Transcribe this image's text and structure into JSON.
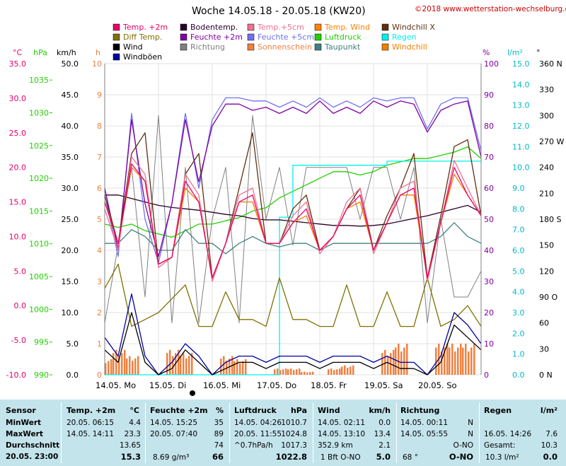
{
  "header": {
    "title": "Woche 14.05.18 - 20.05.18 (KW20)",
    "copyright": "©2018 www.wetterstation-wechselburg.de"
  },
  "legend": [
    {
      "label": "Temp. +2m",
      "color": "#e8006a"
    },
    {
      "label": "Bodentemp.",
      "color": "#280028"
    },
    {
      "label": "Temp.+5cm",
      "color": "#f07090"
    },
    {
      "label": "Temp. Wind",
      "color": "#ff8000"
    },
    {
      "label": "Windchill X",
      "color": "#603010"
    },
    {
      "label": "Diff Temp.",
      "color": "#807000"
    },
    {
      "label": "Feuchte +2m",
      "color": "#8000a0"
    },
    {
      "label": "Feuchte +5cm",
      "color": "#7070f0"
    },
    {
      "label": "Luftdruck",
      "color": "#20d000"
    },
    {
      "label": "Regen",
      "color": "#00f0f0"
    },
    {
      "label": "Wind",
      "color": "#000000"
    },
    {
      "label": "Richtung",
      "color": "#808080"
    },
    {
      "label": "Sonnenschein",
      "color": "#f08040"
    },
    {
      "label": "Taupunkt",
      "color": "#408080"
    },
    {
      "label": "Windchill",
      "color": "#f08000"
    },
    {
      "label": "Windböen",
      "color": "#0000a0"
    }
  ],
  "chart_data": {
    "type": "line",
    "title": "Woche 14.05.18 - 20.05.18 (KW20)",
    "x_days": [
      "14.05.  Mo",
      "15.05.  Di",
      "16.05.  Mi",
      "17.05.  Do",
      "18.05.  Fr",
      "19.05.  Sa",
      "20.05.  So"
    ],
    "hours": [
      0,
      6,
      12,
      18,
      24,
      30,
      36,
      42,
      48,
      54,
      60,
      66,
      72,
      78,
      84,
      90,
      96,
      102,
      108,
      114,
      120,
      126,
      132,
      138,
      144,
      150,
      156,
      162,
      168
    ],
    "axes": {
      "temp_c": {
        "unit": "°C",
        "range": [
          -10,
          35
        ],
        "ticks": [
          "35.0",
          "30.0",
          "25.0",
          "20.0",
          "15.0",
          "10.0",
          "5.0",
          "0.0",
          "-5.0",
          "-10.0"
        ],
        "color": "#e8006a"
      },
      "pressure_hpa": {
        "unit": "hPa",
        "range": [
          990,
          1037.5
        ],
        "ticks": [
          "1035",
          "1030",
          "1025",
          "1020",
          "1015",
          "1010",
          "1005",
          "1000",
          "995",
          "990"
        ],
        "color": "#20d000"
      },
      "wind_kmh": {
        "unit": "km/h",
        "range": [
          0,
          50
        ],
        "ticks": [
          "50.0",
          "45.0",
          "40.0",
          "35.0",
          "30.0",
          "25.0",
          "20.0",
          "15.0",
          "10.0",
          "5.0",
          "0.0"
        ],
        "color": "#000000"
      },
      "sunshine_h": {
        "unit": "h",
        "range": [
          0,
          10
        ],
        "ticks": [
          "10",
          "9",
          "8",
          "7",
          "6",
          "5",
          "4",
          "3",
          "2",
          "1",
          "0"
        ],
        "color": "#f08040"
      },
      "humidity_pct": {
        "unit": "%",
        "range": [
          0,
          100
        ],
        "ticks": [
          "100",
          "90",
          "80",
          "70",
          "60",
          "50",
          "40",
          "30",
          "20",
          "10",
          "0"
        ],
        "color": "#8000a0"
      },
      "rain_lm2": {
        "unit": "l/m²",
        "range": [
          0,
          15
        ],
        "ticks": [
          "15.0",
          "14.0",
          "13.0",
          "12.0",
          "11.0",
          "10.0",
          "9.0",
          "8.0",
          "7.0",
          "6.0",
          "5.0",
          "4.0",
          "3.0",
          "2.0",
          "1.0",
          "0.0"
        ],
        "color": "#00c8c8"
      },
      "direction": {
        "unit": "°",
        "ticks": [
          "360 N",
          "330",
          "300",
          "270 W",
          "240",
          "210",
          "180 S",
          "150",
          "120",
          "90 O",
          "60",
          "30",
          "0 N"
        ],
        "color": "#000000"
      }
    },
    "series": [
      {
        "name": "Temp. +2m",
        "axis": "temp_c",
        "values": [
          15,
          9,
          20.5,
          18,
          6,
          7,
          18,
          15,
          4,
          9,
          15,
          16,
          9,
          9,
          12,
          14,
          8,
          10,
          14,
          16,
          8,
          12,
          16,
          17,
          4,
          12,
          20,
          16,
          13
        ]
      },
      {
        "name": "Bodentemp.",
        "axis": "temp_c",
        "values": [
          16,
          16,
          15.5,
          15,
          14.5,
          14.2,
          14,
          13.8,
          13.5,
          13.2,
          13,
          12.6,
          12.4,
          12.4,
          12.2,
          12,
          11.8,
          11.6,
          11.6,
          11.5,
          11.6,
          11.8,
          12.2,
          12.6,
          13,
          13.5,
          14,
          14.5,
          13.5
        ]
      },
      {
        "name": "Temp.+5cm",
        "axis": "temp_c",
        "values": [
          14,
          8,
          21.5,
          19,
          5.5,
          7,
          19,
          16,
          3.5,
          9,
          16,
          17,
          9,
          9,
          13,
          15,
          7.5,
          10,
          15,
          17,
          7.5,
          12,
          17,
          18,
          3.5,
          12,
          21,
          17,
          13
        ]
      },
      {
        "name": "Windchill X",
        "axis": "temp_c",
        "values": [
          16,
          9,
          22,
          25,
          6,
          7,
          19,
          22,
          4,
          9,
          17,
          25,
          9,
          9,
          14,
          16,
          8,
          10,
          14,
          17,
          8,
          13,
          17,
          22,
          4,
          13,
          23,
          24,
          13
        ]
      },
      {
        "name": "Diff Temp.",
        "axis": "temp_c",
        "values": [
          2.5,
          6,
          -3,
          -2,
          -1,
          1,
          3,
          -3,
          -3,
          2,
          -2,
          -2,
          -3,
          4,
          -2,
          -2,
          -3,
          -3,
          3,
          -3,
          -3,
          2,
          -3,
          -3,
          4,
          -3,
          -2,
          0,
          -3
        ]
      },
      {
        "name": "Feuchte +2m",
        "axis": "humidity_pct",
        "values": [
          60,
          40,
          82,
          55,
          38,
          55,
          82,
          62,
          80,
          87,
          87,
          85,
          86,
          84,
          86,
          84,
          88,
          84,
          86,
          84,
          88,
          86,
          88,
          87,
          78,
          85,
          87,
          88,
          70
        ]
      },
      {
        "name": "Feuchte +5cm",
        "axis": "humidity_pct",
        "values": [
          58,
          38,
          84,
          50,
          36,
          55,
          84,
          60,
          82,
          89,
          89,
          88,
          88,
          86,
          88,
          86,
          89,
          86,
          88,
          86,
          89,
          88,
          89,
          89,
          79,
          87,
          89,
          89,
          72
        ]
      },
      {
        "name": "Luftdruck",
        "axis": "pressure_hpa",
        "values": [
          1013,
          1012.5,
          1013,
          1012,
          1011.5,
          1011,
          1012,
          1013,
          1013,
          1013.5,
          1014,
          1015,
          1015.5,
          1017,
          1018,
          1019,
          1020,
          1021,
          1021,
          1020.5,
          1021,
          1022,
          1022.5,
          1023,
          1023,
          1023.5,
          1024,
          1024.8,
          1023
        ]
      },
      {
        "name": "Regen",
        "axis": "rain_lm2",
        "values": [
          0,
          0,
          0,
          0,
          0,
          0,
          0,
          0,
          0,
          0,
          0,
          0,
          0,
          7.6,
          10.1,
          10.1,
          10.1,
          10.1,
          10.1,
          10.1,
          10.1,
          10.3,
          10.3,
          10.3,
          10.3,
          10.3,
          10.3,
          10.3,
          10.3
        ]
      },
      {
        "name": "Taupunkt",
        "axis": "temp_c",
        "values": [
          9,
          9,
          11,
          10,
          8,
          8,
          11,
          9,
          9,
          7.5,
          9,
          10,
          9,
          8.5,
          9,
          9,
          8,
          9,
          9,
          9,
          9,
          9,
          9,
          9,
          9,
          10,
          12,
          10,
          9
        ]
      },
      {
        "name": "Windchill",
        "axis": "temp_c",
        "values": [
          15,
          9,
          20,
          18,
          6,
          7,
          17,
          15,
          4,
          9,
          15,
          15,
          9,
          9,
          12,
          13,
          8,
          10,
          14,
          15,
          8,
          12,
          16,
          16,
          4,
          12,
          19,
          16,
          13
        ]
      },
      {
        "name": "Wind",
        "axis": "wind_kmh",
        "values": [
          4,
          2,
          10,
          2,
          0,
          1,
          4,
          2,
          0,
          1,
          2,
          2,
          1,
          2,
          2,
          2,
          1,
          2,
          2,
          2,
          1,
          2,
          1,
          1,
          0,
          2,
          8,
          6,
          4
        ]
      },
      {
        "name": "Windböen",
        "axis": "wind_kmh",
        "values": [
          6,
          3,
          13,
          3,
          0,
          2,
          5,
          3,
          0,
          2,
          3,
          3,
          2,
          3,
          3,
          3,
          2,
          3,
          3,
          3,
          2,
          3,
          2,
          2,
          0,
          3,
          10,
          8,
          5
        ]
      },
      {
        "name": "Richtung",
        "axis": "direction",
        "values": [
          60,
          150,
          240,
          90,
          300,
          60,
          240,
          60,
          180,
          240,
          60,
          300,
          180,
          240,
          150,
          240,
          240,
          240,
          240,
          180,
          240,
          240,
          180,
          240,
          60,
          180,
          90,
          90,
          120
        ]
      },
      {
        "name": "Sonnenschein",
        "axis": "sunshine_h",
        "values": [
          0.5,
          0.8,
          0.6,
          0,
          0,
          0.8,
          0.7,
          0,
          0,
          0.6,
          0.5,
          0,
          0,
          0.2,
          0.2,
          0.1,
          0,
          0.2,
          0.3,
          0,
          0,
          0.8,
          1,
          0,
          0,
          1,
          1,
          1,
          0
        ]
      }
    ]
  },
  "summary": {
    "sensor": {
      "header": "Sensor",
      "rows": [
        "MinWert",
        "MaxWert",
        "Durchschnitt",
        "20.05. 23:00"
      ]
    },
    "temp": {
      "header": "Temp. +2m",
      "unit": "°C",
      "rows": [
        [
          "20.05.  06:15",
          "4.4"
        ],
        [
          "14.05.  14:11",
          "23.3"
        ],
        [
          "",
          "13.65"
        ],
        [
          "",
          "15.3"
        ]
      ]
    },
    "feuchte": {
      "header": "Feuchte +2m",
      "unit": "%",
      "rows": [
        [
          "14.05.  15:25",
          "35"
        ],
        [
          "20.05.  07:40",
          "89"
        ],
        [
          "",
          "74"
        ],
        [
          "8.69 g/m³",
          "66"
        ]
      ]
    },
    "luftdruck": {
      "header": "Luftdruck",
      "unit": "hPa",
      "rows": [
        [
          "14.05.  04:26",
          "1010.7"
        ],
        [
          "20.05.  11:55",
          "1024.8"
        ],
        [
          "^0.7hPa/h",
          "1017.3"
        ],
        [
          "",
          "1022.8"
        ]
      ]
    },
    "wind": {
      "header": "Wind",
      "unit": "km/h",
      "rows": [
        [
          "14.05.  02:11",
          "0.0"
        ],
        [
          "14.05.  13:10",
          "13.4"
        ],
        [
          "352.9 km",
          "2.1"
        ],
        [
          "1 Bft O-NO",
          "5.0"
        ]
      ]
    },
    "richtung": {
      "header": "Richtung",
      "rows": [
        [
          "14.05.  00:11",
          "N"
        ],
        [
          "14.05.  05:55",
          "N"
        ],
        [
          "",
          "O-NO"
        ],
        [
          "68 °",
          "O-NO"
        ]
      ]
    },
    "regen": {
      "header": "Regen",
      "unit": "l/m²",
      "rows": [
        [
          "",
          ""
        ],
        [
          "16.05.  14:26",
          "7.6"
        ],
        [
          "Gesamt:",
          "10.3"
        ],
        [
          "10.3 l/m²",
          "0.0"
        ]
      ]
    }
  }
}
